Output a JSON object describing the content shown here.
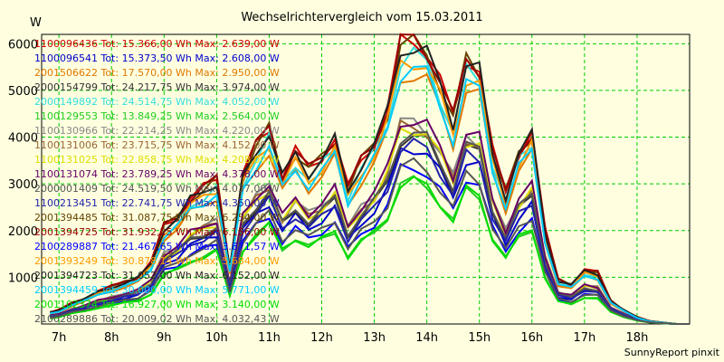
{
  "chart_data": {
    "type": "line",
    "title": "Wechselrichtervergleich vom 15.03.2011",
    "ylabel": "W",
    "footer": "SunnyReport pinxit",
    "xlim": [
      6.67,
      19.0
    ],
    "ylim": [
      0,
      6200
    ],
    "yticks": [
      1000,
      2000,
      3000,
      4000,
      5000,
      6000
    ],
    "xticks": [
      {
        "value": 7,
        "label": "7h"
      },
      {
        "value": 8,
        "label": "8h"
      },
      {
        "value": 9,
        "label": "9h"
      },
      {
        "value": 10,
        "label": "10h"
      },
      {
        "value": 11,
        "label": "11h"
      },
      {
        "value": 12,
        "label": "12h"
      },
      {
        "value": 13,
        "label": "13h"
      },
      {
        "value": 14,
        "label": "14h"
      },
      {
        "value": 15,
        "label": "15h"
      },
      {
        "value": 16,
        "label": "16h"
      },
      {
        "value": 17,
        "label": "17h"
      },
      {
        "value": 18,
        "label": "18h"
      }
    ],
    "grid": true,
    "legend_position": "top-left",
    "x": [
      6.83,
      7.0,
      7.25,
      7.5,
      7.75,
      8.0,
      8.25,
      8.5,
      8.75,
      9.0,
      9.25,
      9.5,
      9.75,
      10.0,
      10.25,
      10.5,
      10.75,
      11.0,
      11.25,
      11.5,
      11.75,
      12.0,
      12.25,
      12.5,
      12.75,
      13.0,
      13.25,
      13.5,
      13.75,
      14.0,
      14.25,
      14.5,
      14.75,
      15.0,
      15.25,
      15.5,
      15.75,
      16.0,
      16.25,
      16.5,
      16.75,
      17.0,
      17.25,
      17.5,
      17.75,
      18.0,
      18.25,
      18.5,
      18.75,
      19.0
    ],
    "series": [
      {
        "name": "1100096436",
        "label": "1100096436 Tot: 15.366,00 Wh Max: 2.639,00 W",
        "color": "#cc0000",
        "scale": 1.0
      },
      {
        "name": "1100096541",
        "label": "1100096541 Tot: 15.373,50 Wh Max: 2.608,00 W",
        "color": "#0000cc",
        "scale": 0.62
      },
      {
        "name": "2001506622",
        "label": "2001506622 Tot: 17.570,00 Wh Max: 2.950,00 W",
        "color": "#e07800",
        "scale": 0.88
      },
      {
        "name": "2000154799",
        "label": "2000154799 Tot: 24.217,75 Wh Max: 3.974,00 W",
        "color": "#333333",
        "scale": 0.66
      },
      {
        "name": "2000149892",
        "label": "2000149892 Tot: 24.514,75 Wh Max: 4.052,00 W",
        "color": "#33dddd",
        "scale": 0.94
      },
      {
        "name": "1100129553",
        "label": "1100129553 Tot: 13.849,25 Wh Max: 2.564,00 W",
        "color": "#22cc22",
        "scale": 0.5
      },
      {
        "name": "1100130966",
        "label": "1100130966 Tot: 22.214,25 Wh Max: 4.220,00 W",
        "color": "#888888",
        "scale": 0.71
      },
      {
        "name": "1100131006",
        "label": "1100131006 Tot: 23.715,75 Wh Max: 4.152,00 W",
        "color": "#996633",
        "scale": 0.7
      },
      {
        "name": "1100131025",
        "label": "1100131025 Tot: 22.858,75 Wh Max: 4.208,00 W",
        "color": "#dddd00",
        "scale": 0.69
      },
      {
        "name": "1100131074",
        "label": "1100131074 Tot: 23.789,25 Wh Max: 4.378,00 W",
        "color": "#660066",
        "scale": 0.72
      },
      {
        "name": "2000001409",
        "label": "2000001409 Tot: 24.519,50 Wh Max: 4.037,00 W",
        "color": "#555555",
        "scale": 0.67
      },
      {
        "name": "1100213451",
        "label": "1100213451 Tot: 22.741,75 Wh Max: 4.350,00 W",
        "color": "#2222aa",
        "scale": 0.63
      },
      {
        "name": "2001394485",
        "label": "2001394485 Tot: 31.087,75 Wh Max: 6.254,00 W",
        "color": "#664400",
        "scale": 0.99
      },
      {
        "name": "2001394725",
        "label": "2001394725 Tot: 31.932,25 Wh Max: 6.156,00 W",
        "color": "#990000",
        "scale": 1.0
      },
      {
        "name": "2100289887",
        "label": "2100289887 Tot: 21.467,65 Wh Max: 3.871,57 W",
        "color": "#0000ff",
        "scale": 0.55
      },
      {
        "name": "2001393249",
        "label": "2001393249 Tot: 30.878,14 Wh Max: 5.684,00 W",
        "color": "#ff9900",
        "scale": 0.93
      },
      {
        "name": "2001394723",
        "label": "2001394723 Tot: 31.052,00 Wh Max: 6.152,00 W",
        "color": "#222222",
        "scale": 0.98
      },
      {
        "name": "2001394459",
        "label": "2001394459 Tot: 30.000,00 Wh Max: 5.771,00 W",
        "color": "#00ccff",
        "scale": 0.9
      },
      {
        "name": "2001102374",
        "label": "2001102374 Tot: 16.927,00 Wh Max: 3.140,00 W",
        "color": "#00dd00",
        "scale": 0.5
      },
      {
        "name": "2100289886",
        "label": "2100289886 Tot: 20.009,02 Wh Max: 4.032,43 W",
        "color": "#555555",
        "scale": 0.56
      }
    ],
    "base_profile": [
      250,
      300,
      450,
      550,
      700,
      800,
      900,
      1000,
      1300,
      2100,
      2300,
      2700,
      2900,
      3100,
      1200,
      3200,
      3800,
      4200,
      3200,
      3700,
      3300,
      3600,
      4000,
      2900,
      3500,
      3900,
      4600,
      6000,
      6100,
      5900,
      5200,
      4400,
      5700,
      5500,
      3700,
      2800,
      3700,
      4100,
      2000,
      950,
      850,
      1150,
      1100,
      500,
      300,
      150,
      60,
      30,
      0,
      0
    ]
  }
}
